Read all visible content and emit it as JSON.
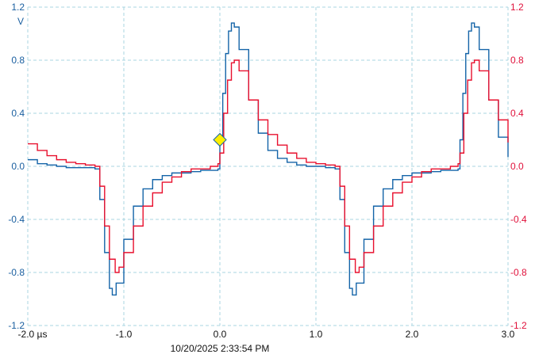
{
  "chart_data": {
    "type": "line",
    "title": "",
    "xlabel": "",
    "x_unit": "µs",
    "ylabel_left": "V",
    "xlim": [
      -2.0,
      3.0
    ],
    "ylim": [
      -1.2,
      1.2
    ],
    "ylim_right": [
      -1.2,
      1.2
    ],
    "x_ticks": [
      "-2.0 µs",
      "-1.0",
      "0.0",
      "1.0",
      "2.0",
      "3.0"
    ],
    "x_tick_values": [
      -2,
      -1,
      0,
      1,
      2,
      3
    ],
    "y_ticks": [
      "1.2",
      "0.8",
      "0.4",
      "0.0",
      "-0.4",
      "-0.8",
      "-1.2"
    ],
    "y_tick_values": [
      1.2,
      0.8,
      0.4,
      0.0,
      -0.4,
      -0.8,
      -1.2
    ],
    "grid": true,
    "colors": {
      "grid": "#a8d4e0",
      "left_axis": "#1a5fa0",
      "right_axis": "#e0103a",
      "marker": "#ffee00"
    },
    "trigger_marker": {
      "x": 0.0,
      "y": 0.2
    },
    "timestamp": "10/20/2025 2:33:54 PM",
    "series": [
      {
        "color": "#1464a8",
        "axis": "left",
        "points": [
          [
            -2.0,
            0.05
          ],
          [
            -1.9,
            0.02
          ],
          [
            -1.8,
            0.01
          ],
          [
            -1.7,
            0.0
          ],
          [
            -1.6,
            -0.01
          ],
          [
            -1.5,
            -0.01
          ],
          [
            -1.4,
            -0.01
          ],
          [
            -1.3,
            -0.02
          ],
          [
            -1.25,
            -0.25
          ],
          [
            -1.2,
            -0.65
          ],
          [
            -1.15,
            -0.92
          ],
          [
            -1.12,
            -0.97
          ],
          [
            -1.08,
            -0.88
          ],
          [
            -1.0,
            -0.55
          ],
          [
            -0.9,
            -0.3
          ],
          [
            -0.8,
            -0.17
          ],
          [
            -0.7,
            -0.1
          ],
          [
            -0.6,
            -0.07
          ],
          [
            -0.5,
            -0.05
          ],
          [
            -0.4,
            -0.05
          ],
          [
            -0.3,
            -0.04
          ],
          [
            -0.2,
            -0.03
          ],
          [
            -0.1,
            -0.03
          ],
          [
            -0.02,
            -0.02
          ],
          [
            0.0,
            0.2
          ],
          [
            0.03,
            0.55
          ],
          [
            0.06,
            0.85
          ],
          [
            0.09,
            1.02
          ],
          [
            0.12,
            1.08
          ],
          [
            0.15,
            1.05
          ],
          [
            0.2,
            0.88
          ],
          [
            0.3,
            0.5
          ],
          [
            0.4,
            0.25
          ],
          [
            0.5,
            0.12
          ],
          [
            0.6,
            0.06
          ],
          [
            0.7,
            0.03
          ],
          [
            0.8,
            0.01
          ],
          [
            0.9,
            0.0
          ],
          [
            1.0,
            0.0
          ],
          [
            1.1,
            -0.01
          ],
          [
            1.2,
            -0.02
          ],
          [
            1.25,
            -0.25
          ],
          [
            1.3,
            -0.65
          ],
          [
            1.35,
            -0.92
          ],
          [
            1.38,
            -0.97
          ],
          [
            1.42,
            -0.88
          ],
          [
            1.5,
            -0.55
          ],
          [
            1.6,
            -0.3
          ],
          [
            1.7,
            -0.17
          ],
          [
            1.8,
            -0.1
          ],
          [
            1.9,
            -0.07
          ],
          [
            2.0,
            -0.05
          ],
          [
            2.1,
            -0.05
          ],
          [
            2.2,
            -0.04
          ],
          [
            2.3,
            -0.03
          ],
          [
            2.4,
            -0.03
          ],
          [
            2.48,
            -0.02
          ],
          [
            2.5,
            0.2
          ],
          [
            2.53,
            0.55
          ],
          [
            2.56,
            0.85
          ],
          [
            2.59,
            1.02
          ],
          [
            2.62,
            1.08
          ],
          [
            2.65,
            1.05
          ],
          [
            2.7,
            0.88
          ],
          [
            2.8,
            0.5
          ],
          [
            2.9,
            0.22
          ],
          [
            3.0,
            0.07
          ]
        ]
      },
      {
        "color": "#e8102e",
        "axis": "right",
        "points": [
          [
            -2.0,
            0.17
          ],
          [
            -1.9,
            0.12
          ],
          [
            -1.8,
            0.08
          ],
          [
            -1.7,
            0.05
          ],
          [
            -1.6,
            0.03
          ],
          [
            -1.5,
            0.02
          ],
          [
            -1.4,
            0.01
          ],
          [
            -1.3,
            0.0
          ],
          [
            -1.25,
            -0.15
          ],
          [
            -1.2,
            -0.45
          ],
          [
            -1.15,
            -0.7
          ],
          [
            -1.09,
            -0.8
          ],
          [
            -1.05,
            -0.76
          ],
          [
            -1.0,
            -0.65
          ],
          [
            -0.9,
            -0.45
          ],
          [
            -0.8,
            -0.3
          ],
          [
            -0.7,
            -0.2
          ],
          [
            -0.6,
            -0.12
          ],
          [
            -0.5,
            -0.08
          ],
          [
            -0.4,
            -0.04
          ],
          [
            -0.3,
            -0.02
          ],
          [
            -0.1,
            0.0
          ],
          [
            -0.02,
            0.02
          ],
          [
            0.0,
            0.1
          ],
          [
            0.04,
            0.4
          ],
          [
            0.08,
            0.65
          ],
          [
            0.12,
            0.78
          ],
          [
            0.15,
            0.8
          ],
          [
            0.2,
            0.72
          ],
          [
            0.3,
            0.5
          ],
          [
            0.4,
            0.35
          ],
          [
            0.5,
            0.24
          ],
          [
            0.6,
            0.16
          ],
          [
            0.7,
            0.1
          ],
          [
            0.8,
            0.06
          ],
          [
            0.9,
            0.03
          ],
          [
            1.0,
            0.02
          ],
          [
            1.1,
            0.01
          ],
          [
            1.2,
            0.0
          ],
          [
            1.25,
            -0.15
          ],
          [
            1.3,
            -0.45
          ],
          [
            1.35,
            -0.7
          ],
          [
            1.41,
            -0.8
          ],
          [
            1.45,
            -0.76
          ],
          [
            1.5,
            -0.65
          ],
          [
            1.6,
            -0.45
          ],
          [
            1.7,
            -0.3
          ],
          [
            1.8,
            -0.2
          ],
          [
            1.9,
            -0.12
          ],
          [
            2.0,
            -0.08
          ],
          [
            2.1,
            -0.04
          ],
          [
            2.2,
            -0.02
          ],
          [
            2.4,
            0.0
          ],
          [
            2.48,
            0.02
          ],
          [
            2.5,
            0.1
          ],
          [
            2.54,
            0.4
          ],
          [
            2.58,
            0.65
          ],
          [
            2.62,
            0.78
          ],
          [
            2.65,
            0.8
          ],
          [
            2.7,
            0.72
          ],
          [
            2.8,
            0.5
          ],
          [
            2.9,
            0.35
          ],
          [
            3.0,
            0.18
          ]
        ]
      }
    ]
  }
}
